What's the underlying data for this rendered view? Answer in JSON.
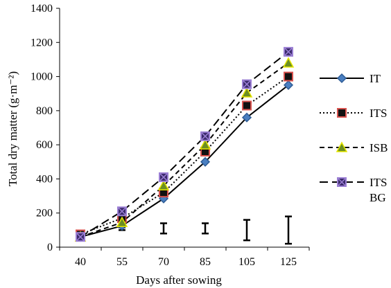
{
  "chart_data": {
    "type": "line",
    "xlabel": "Days after sowing",
    "ylabel": "Total dry matter (g·m⁻²)",
    "categories": [
      "40",
      "55",
      "70",
      "85",
      "105",
      "125"
    ],
    "ylim": [
      0,
      1400
    ],
    "yticks": [
      "0",
      "200",
      "400",
      "600",
      "800",
      "1000",
      "1200",
      "1400"
    ],
    "legend_position": "right",
    "series": [
      {
        "name": "IT",
        "values": [
          60,
          125,
          285,
          500,
          760,
          950
        ],
        "color": "#000000",
        "dash": "solid",
        "marker": "diamond",
        "marker_fill": "#4a7fc1",
        "marker_stroke": "#2f5d96"
      },
      {
        "name": "ITS",
        "values": [
          75,
          170,
          320,
          560,
          830,
          1000
        ],
        "color": "#000000",
        "dash": "dotted",
        "marker": "square",
        "marker_fill": "#111111",
        "marker_stroke": "#d9534f"
      },
      {
        "name": "ISB",
        "values": [
          60,
          145,
          360,
          600,
          905,
          1080
        ],
        "color": "#000000",
        "dash": "dashed",
        "marker": "triangle",
        "marker_fill": "#6b8e23",
        "marker_stroke": "#e6e600"
      },
      {
        "name": "ITS BG",
        "values": [
          60,
          210,
          410,
          650,
          955,
          1145
        ],
        "color": "#000000",
        "dash": "longdash",
        "marker": "squarex",
        "marker_fill": "#3b2a6b",
        "marker_stroke": "#9b7fd4"
      }
    ],
    "error_bars": [
      {
        "category": "40",
        "low": 0,
        "high": 0
      },
      {
        "category": "55",
        "low": 100,
        "high": 115
      },
      {
        "category": "70",
        "low": 80,
        "high": 140
      },
      {
        "category": "85",
        "low": 80,
        "high": 140
      },
      {
        "category": "105",
        "low": 40,
        "high": 160
      },
      {
        "category": "125",
        "low": 20,
        "high": 180
      }
    ]
  }
}
